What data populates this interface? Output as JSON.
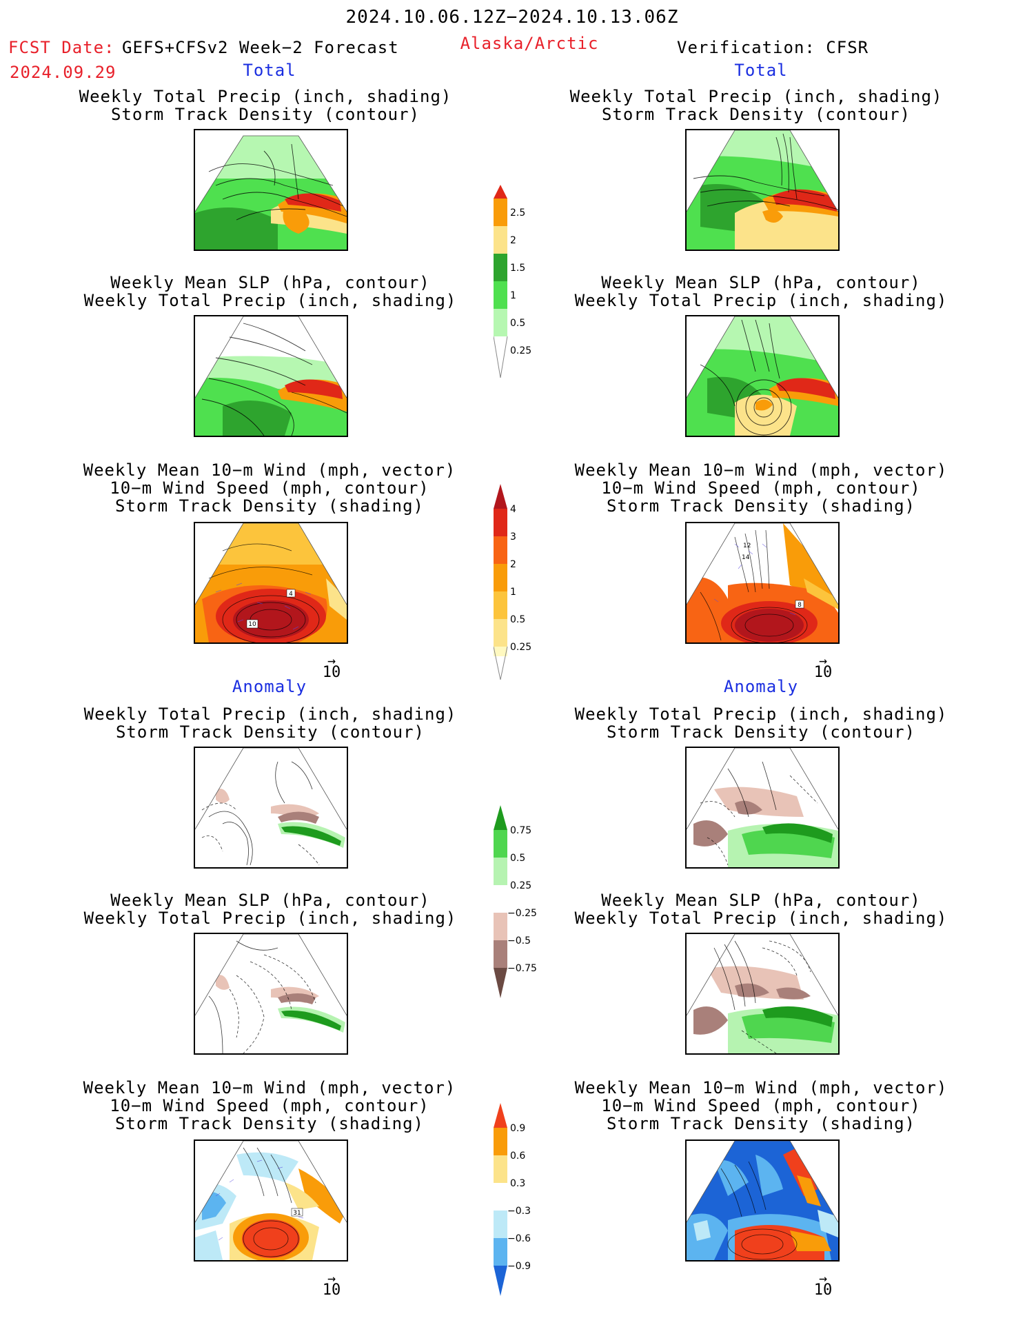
{
  "header": {
    "date_range": "2024.10.06.12Z−2024.10.13.06Z",
    "fcst_label": "FCST Date:",
    "fcst_model": "GEFS+CFSv2 Week−2 Forecast",
    "fcst_date": "2024.09.29",
    "region": "Alaska/Arctic",
    "verification": "Verification: CFSR"
  },
  "sections": {
    "total_left": "Total",
    "total_right": "Total",
    "anomaly_left": "Anomaly",
    "anomaly_right": "Anomaly"
  },
  "panel_titles": {
    "precip_storm": [
      "Weekly Total Precip (inch, shading)",
      "Storm Track Density (contour)"
    ],
    "slp_precip": [
      "Weekly Mean SLP (hPa, contour)",
      "Weekly Total Precip (inch, shading)"
    ],
    "wind": [
      "Weekly Mean 10−m Wind (mph, vector)",
      "10−m Wind Speed (mph, contour)",
      "Storm Track Density (shading)"
    ]
  },
  "vector_ref": "10",
  "contour_labels": {
    "fcst_wind_total": [
      "4",
      "10"
    ],
    "obs_wind_total": [
      "12",
      "14",
      "8"
    ],
    "fcst_wind_anom": [
      "31"
    ]
  },
  "colorbars": {
    "precip_total": {
      "ticks": [
        "2.5",
        "2",
        "1.5",
        "1",
        "0.5",
        "0.25"
      ],
      "colors": [
        "#e02818",
        "#f99c09",
        "#fce38a",
        "#2ea42e",
        "#4fe04f",
        "#b6f7b1"
      ]
    },
    "storm_total": {
      "ticks": [
        "4",
        "3",
        "2",
        "1",
        "0.5",
        "0.25"
      ],
      "colors": [
        "#b2161c",
        "#e02818",
        "#f86414",
        "#f99c09",
        "#fcc43c",
        "#fce38a",
        "#fff9c0"
      ]
    },
    "precip_anom": {
      "ticks": [
        "0.75",
        "0.5",
        "0.25",
        "−0.25",
        "−0.5",
        "−0.75"
      ],
      "colors": [
        "#1e9b1e",
        "#4fd64f",
        "#b6f3b1",
        "#ffffff",
        "#e8c3b7",
        "#a9807a",
        "#6b4a43"
      ]
    },
    "storm_anom": {
      "ticks": [
        "0.9",
        "0.6",
        "0.3",
        "−0.3",
        "−0.6",
        "−0.9"
      ],
      "colors": [
        "#f0401c",
        "#f99c09",
        "#fce38a",
        "#ffffff",
        "#bde9f7",
        "#5cb4f0",
        "#1c64d6"
      ]
    }
  }
}
